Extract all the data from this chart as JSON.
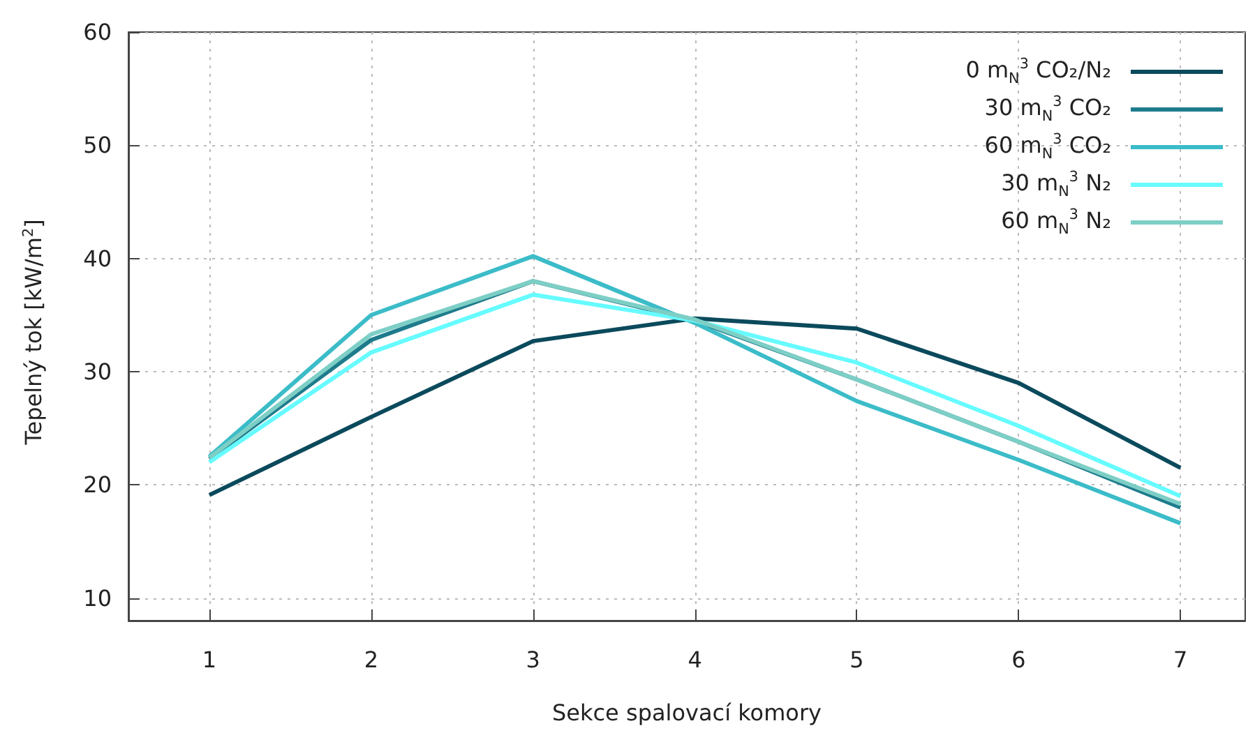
{
  "chart_data": {
    "type": "line",
    "xlabel": "Sekce spalovací komory",
    "ylabel": "Tepelný tok [kW/m$^{2}$]",
    "x": [
      1,
      2,
      3,
      4,
      5,
      6,
      7
    ],
    "xlim": [
      0.5,
      7.4
    ],
    "xticks": [
      1,
      2,
      3,
      4,
      5,
      6,
      7
    ],
    "ylim": [
      8,
      60
    ],
    "yticks": [
      10,
      20,
      30,
      40,
      50,
      60
    ],
    "grid": true,
    "legend": "top right",
    "marker": "none",
    "line_style": "solid",
    "series": [
      {
        "name": "0 m$_{N}$$^{3}$  CO₂/N₂",
        "color": "#0b4a5c",
        "values": [
          19.1,
          26,
          32.7,
          34.7,
          33.8,
          29,
          21.5
        ]
      },
      {
        "name": "30 m$_{N}$$^{3}$  CO₂",
        "color": "#1e7b8c",
        "values": [
          22.3,
          32.8,
          38,
          34.5,
          29.3,
          23.8,
          18
        ]
      },
      {
        "name": "60 m$_{N}$$^{3}$  CO₂",
        "color": "#3bbcc8",
        "values": [
          22.5,
          35,
          40.2,
          34.3,
          27.4,
          22.2,
          16.6
        ]
      },
      {
        "name": "30 m$_{N}$$^{3}$  N₂",
        "color": "#66fbff",
        "values": [
          22,
          31.7,
          36.8,
          34.5,
          30.8,
          25.2,
          19
        ]
      },
      {
        "name": "60 m$_{N}$$^{3}$  N₂",
        "color": "#7dcfc6",
        "values": [
          22.4,
          33.3,
          38,
          34.6,
          29.3,
          23.8,
          18.3
        ]
      }
    ]
  }
}
